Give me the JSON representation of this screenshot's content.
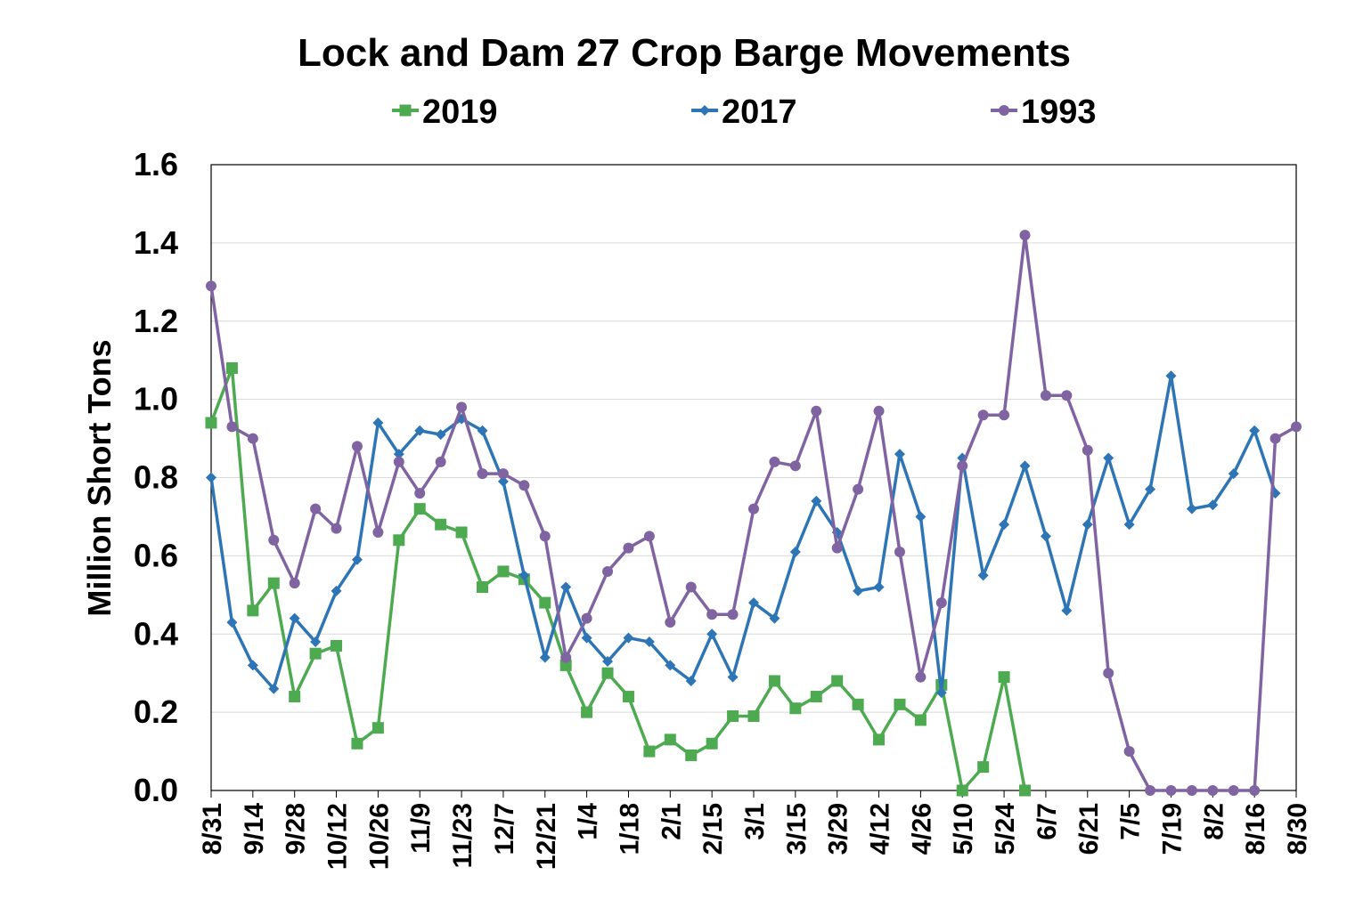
{
  "chart_data": {
    "type": "line",
    "title": "Lock and Dam 27 Crop Barge Movements",
    "ylabel": "Million Short Tons",
    "xlabel": "",
    "ylim": [
      0,
      1.6
    ],
    "yticks": [
      "0.0",
      "0.2",
      "0.4",
      "0.6",
      "0.8",
      "1.0",
      "1.2",
      "1.4",
      "1.6"
    ],
    "grid": true,
    "legend_position": "top",
    "x_tick_labels": [
      "8/31",
      "9/14",
      "9/28",
      "10/12",
      "10/26",
      "11/9",
      "11/23",
      "12/7",
      "12/21",
      "1/4",
      "1/18",
      "2/1",
      "2/15",
      "3/1",
      "3/15",
      "3/29",
      "4/12",
      "4/26",
      "5/10",
      "5/24",
      "6/7",
      "6/21",
      "7/5",
      "7/19",
      "8/2",
      "8/16",
      "8/30"
    ],
    "series": [
      {
        "name": "2019",
        "color": "#4daa50",
        "marker": "square",
        "values": [
          0.94,
          1.08,
          0.46,
          0.53,
          0.24,
          0.35,
          0.37,
          0.12,
          0.16,
          0.64,
          0.72,
          0.68,
          0.66,
          0.52,
          0.56,
          0.54,
          0.48,
          0.32,
          0.2,
          0.3,
          0.24,
          0.1,
          0.13,
          0.09,
          0.12,
          0.19,
          0.19,
          0.28,
          0.21,
          0.24,
          0.28,
          0.22,
          0.13,
          0.22,
          0.18,
          0.27,
          0.0,
          0.06,
          0.29,
          0.0
        ]
      },
      {
        "name": "2017",
        "color": "#2e75b6",
        "marker": "diamond",
        "values": [
          0.8,
          0.43,
          0.32,
          0.26,
          0.44,
          0.38,
          0.51,
          0.59,
          0.94,
          0.86,
          0.92,
          0.91,
          0.95,
          0.92,
          0.79,
          0.55,
          0.34,
          0.52,
          0.39,
          0.33,
          0.39,
          0.38,
          0.32,
          0.28,
          0.4,
          0.29,
          0.48,
          0.44,
          0.61,
          0.74,
          0.66,
          0.51,
          0.52,
          0.86,
          0.7,
          0.25,
          0.85,
          0.55,
          0.68,
          0.83,
          0.65,
          0.46,
          0.68,
          0.85,
          0.68,
          0.77,
          1.06,
          0.72,
          0.73,
          0.81,
          0.92,
          0.76
        ]
      },
      {
        "name": "1993",
        "color": "#8064a2",
        "marker": "circle",
        "values": [
          1.29,
          0.93,
          0.9,
          0.64,
          0.53,
          0.72,
          0.67,
          0.88,
          0.66,
          0.84,
          0.76,
          0.84,
          0.98,
          0.81,
          0.81,
          0.78,
          0.65,
          0.34,
          0.44,
          0.56,
          0.62,
          0.65,
          0.43,
          0.52,
          0.45,
          0.45,
          0.72,
          0.84,
          0.83,
          0.97,
          0.62,
          0.77,
          0.97,
          0.61,
          0.29,
          0.48,
          0.83,
          0.96,
          0.96,
          1.42,
          1.01,
          1.01,
          0.87,
          0.3,
          0.1,
          0.0,
          0.0,
          0.0,
          0.0,
          0.0,
          0.0,
          0.9,
          0.93
        ]
      }
    ]
  }
}
